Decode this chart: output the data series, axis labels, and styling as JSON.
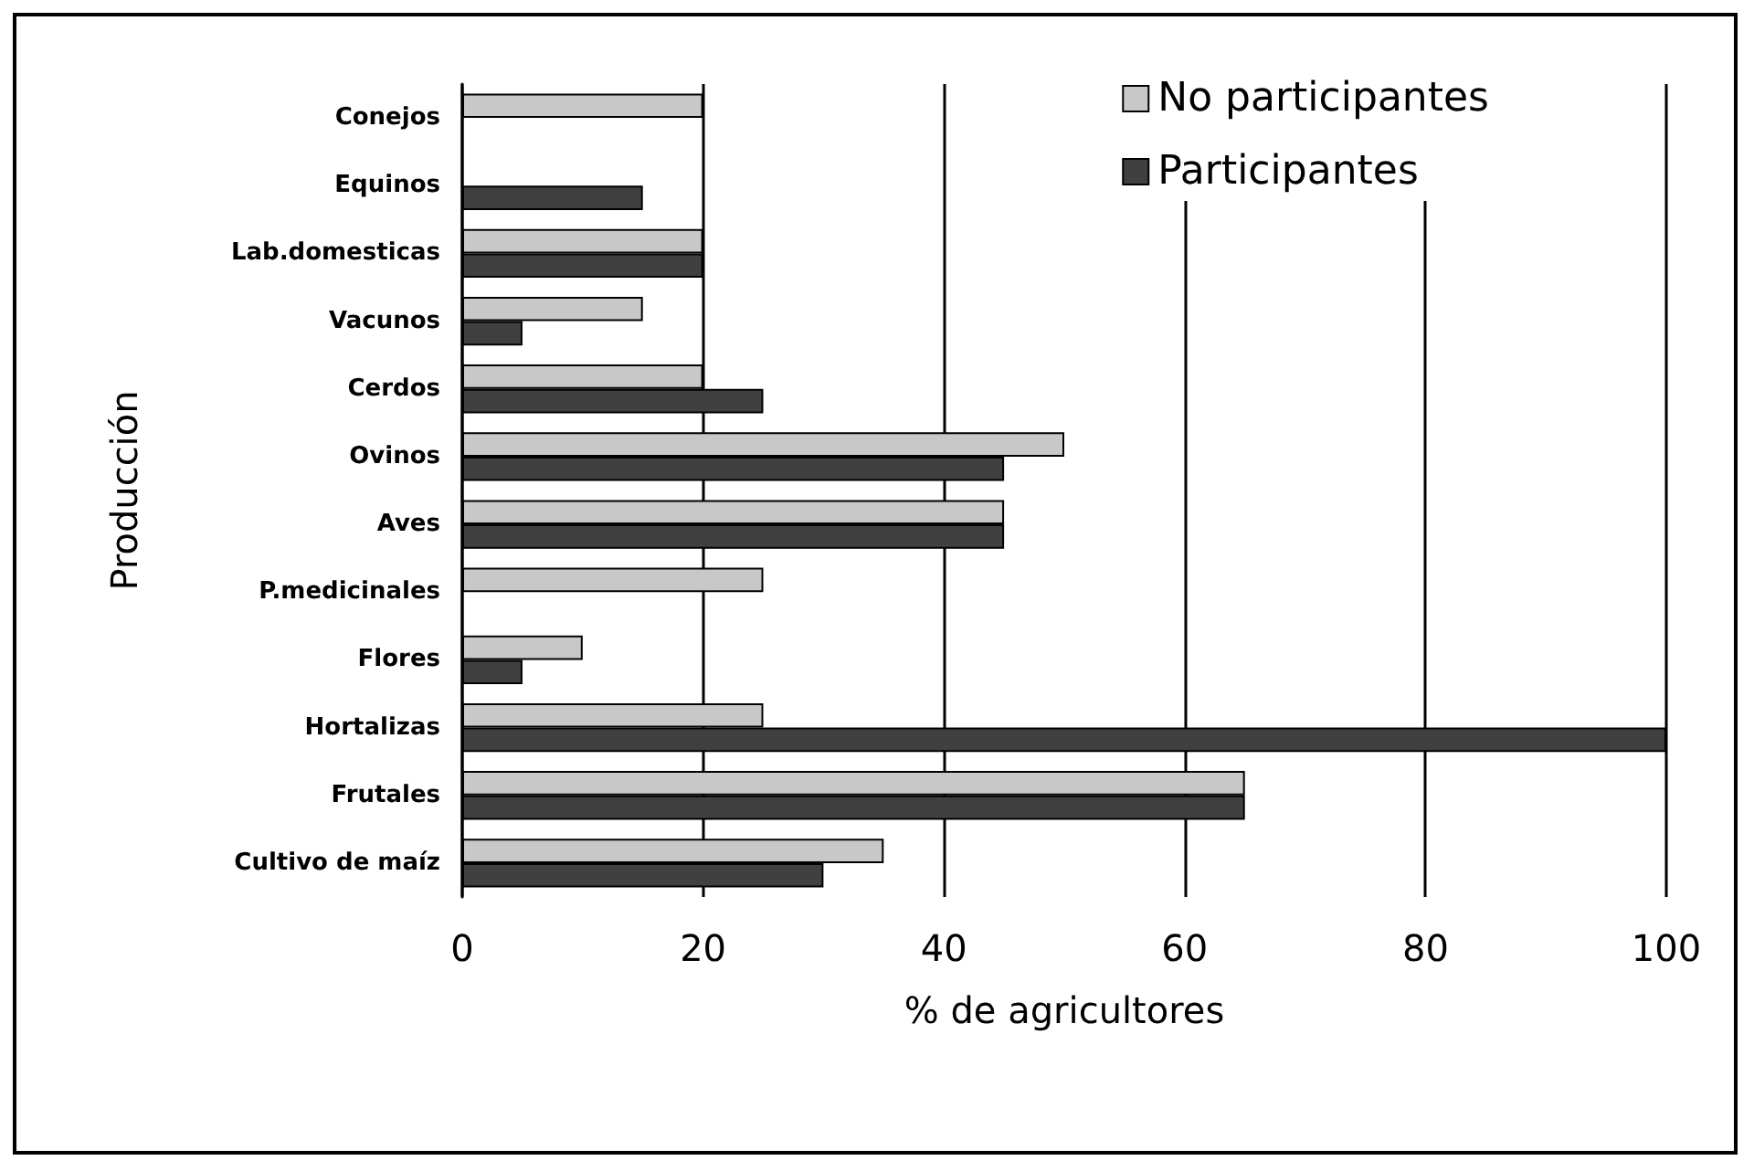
{
  "chart_data": {
    "type": "bar",
    "orientation": "horizontal",
    "xlabel": "% de agricultores",
    "ylabel": "Producción",
    "categories": [
      "Conejos",
      "Equinos",
      "Lab.domesticas",
      "Vacunos",
      "Cerdos",
      "Ovinos",
      "Aves",
      "P.medicinales",
      "Flores",
      "Hortalizas",
      "Frutales",
      "Cultivo de maíz"
    ],
    "series": [
      {
        "name": "No participantes",
        "color": "#c8c8c8",
        "values": [
          20,
          null,
          20,
          15,
          20,
          50,
          45,
          25,
          10,
          25,
          65,
          35
        ]
      },
      {
        "name": "Participantes",
        "color": "#404040",
        "values": [
          null,
          15,
          20,
          5,
          25,
          45,
          45,
          null,
          5,
          100,
          65,
          30
        ]
      }
    ],
    "xlim": [
      0,
      100
    ],
    "xticks": [
      0,
      20,
      40,
      60,
      80,
      100
    ],
    "grid": "x",
    "legend": "top right"
  }
}
